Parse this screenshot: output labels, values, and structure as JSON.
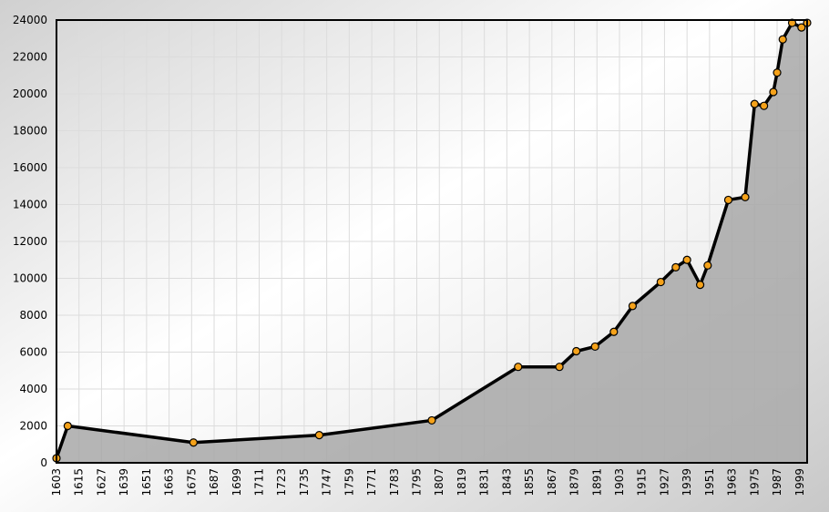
{
  "chart_data": {
    "type": "area",
    "x": [
      1603,
      1609,
      1676,
      1743,
      1803,
      1849,
      1871,
      1880,
      1890,
      1900,
      1910,
      1925,
      1933,
      1939,
      1946,
      1950,
      1961,
      1970,
      1975,
      1980,
      1985,
      1987,
      1990,
      1995,
      2000,
      2003
    ],
    "series": [
      {
        "color": "#000000",
        "marker_color": "#f5a21a",
        "values": [
          250,
          2000,
          1100,
          1500,
          2300,
          5200,
          5200,
          6050,
          6300,
          7100,
          8500,
          9800,
          10600,
          11000,
          9650,
          10700,
          14250,
          14400,
          19450,
          19350,
          20100,
          21150,
          22950,
          23850,
          23600,
          23850
        ]
      }
    ],
    "fill_color": "#a8a8a8",
    "xlim": [
      1603,
      2003
    ],
    "xticks": [
      1603,
      1615,
      1627,
      1639,
      1651,
      1663,
      1675,
      1687,
      1699,
      1711,
      1723,
      1735,
      1747,
      1759,
      1771,
      1783,
      1795,
      1807,
      1819,
      1831,
      1843,
      1855,
      1867,
      1879,
      1891,
      1903,
      1915,
      1927,
      1939,
      1951,
      1963,
      1975,
      1987,
      1999
    ],
    "ylim": [
      0,
      24000
    ],
    "yticks": [
      0,
      2000,
      4000,
      6000,
      8000,
      10000,
      12000,
      14000,
      16000,
      18000,
      20000,
      22000,
      24000
    ],
    "grid": true
  }
}
